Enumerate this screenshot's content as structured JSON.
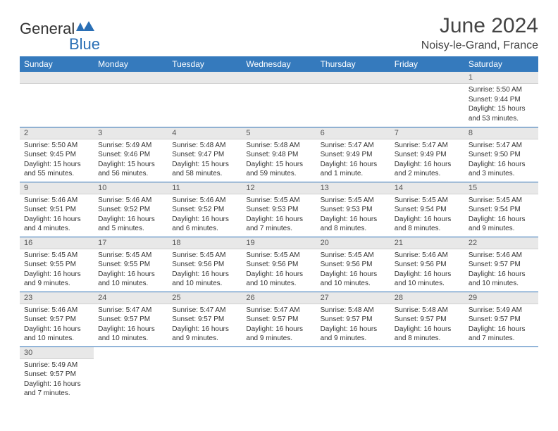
{
  "logo": {
    "general": "General",
    "blue": "Blue"
  },
  "title": "June 2024",
  "subtitle": "Noisy-le-Grand, France",
  "colors": {
    "header_bg": "#357abd",
    "header_text": "#ffffff",
    "daynum_bg": "#e8e8e8",
    "border": "#2a6fb5",
    "logo_blue": "#2a6fb5"
  },
  "day_headers": [
    "Sunday",
    "Monday",
    "Tuesday",
    "Wednesday",
    "Thursday",
    "Friday",
    "Saturday"
  ],
  "weeks": [
    [
      {
        "n": "",
        "sr": "",
        "ss": "",
        "dl": ""
      },
      {
        "n": "",
        "sr": "",
        "ss": "",
        "dl": ""
      },
      {
        "n": "",
        "sr": "",
        "ss": "",
        "dl": ""
      },
      {
        "n": "",
        "sr": "",
        "ss": "",
        "dl": ""
      },
      {
        "n": "",
        "sr": "",
        "ss": "",
        "dl": ""
      },
      {
        "n": "",
        "sr": "",
        "ss": "",
        "dl": ""
      },
      {
        "n": "1",
        "sr": "Sunrise: 5:50 AM",
        "ss": "Sunset: 9:44 PM",
        "dl": "Daylight: 15 hours and 53 minutes."
      }
    ],
    [
      {
        "n": "2",
        "sr": "Sunrise: 5:50 AM",
        "ss": "Sunset: 9:45 PM",
        "dl": "Daylight: 15 hours and 55 minutes."
      },
      {
        "n": "3",
        "sr": "Sunrise: 5:49 AM",
        "ss": "Sunset: 9:46 PM",
        "dl": "Daylight: 15 hours and 56 minutes."
      },
      {
        "n": "4",
        "sr": "Sunrise: 5:48 AM",
        "ss": "Sunset: 9:47 PM",
        "dl": "Daylight: 15 hours and 58 minutes."
      },
      {
        "n": "5",
        "sr": "Sunrise: 5:48 AM",
        "ss": "Sunset: 9:48 PM",
        "dl": "Daylight: 15 hours and 59 minutes."
      },
      {
        "n": "6",
        "sr": "Sunrise: 5:47 AM",
        "ss": "Sunset: 9:49 PM",
        "dl": "Daylight: 16 hours and 1 minute."
      },
      {
        "n": "7",
        "sr": "Sunrise: 5:47 AM",
        "ss": "Sunset: 9:49 PM",
        "dl": "Daylight: 16 hours and 2 minutes."
      },
      {
        "n": "8",
        "sr": "Sunrise: 5:47 AM",
        "ss": "Sunset: 9:50 PM",
        "dl": "Daylight: 16 hours and 3 minutes."
      }
    ],
    [
      {
        "n": "9",
        "sr": "Sunrise: 5:46 AM",
        "ss": "Sunset: 9:51 PM",
        "dl": "Daylight: 16 hours and 4 minutes."
      },
      {
        "n": "10",
        "sr": "Sunrise: 5:46 AM",
        "ss": "Sunset: 9:52 PM",
        "dl": "Daylight: 16 hours and 5 minutes."
      },
      {
        "n": "11",
        "sr": "Sunrise: 5:46 AM",
        "ss": "Sunset: 9:52 PM",
        "dl": "Daylight: 16 hours and 6 minutes."
      },
      {
        "n": "12",
        "sr": "Sunrise: 5:45 AM",
        "ss": "Sunset: 9:53 PM",
        "dl": "Daylight: 16 hours and 7 minutes."
      },
      {
        "n": "13",
        "sr": "Sunrise: 5:45 AM",
        "ss": "Sunset: 9:53 PM",
        "dl": "Daylight: 16 hours and 8 minutes."
      },
      {
        "n": "14",
        "sr": "Sunrise: 5:45 AM",
        "ss": "Sunset: 9:54 PM",
        "dl": "Daylight: 16 hours and 8 minutes."
      },
      {
        "n": "15",
        "sr": "Sunrise: 5:45 AM",
        "ss": "Sunset: 9:54 PM",
        "dl": "Daylight: 16 hours and 9 minutes."
      }
    ],
    [
      {
        "n": "16",
        "sr": "Sunrise: 5:45 AM",
        "ss": "Sunset: 9:55 PM",
        "dl": "Daylight: 16 hours and 9 minutes."
      },
      {
        "n": "17",
        "sr": "Sunrise: 5:45 AM",
        "ss": "Sunset: 9:55 PM",
        "dl": "Daylight: 16 hours and 10 minutes."
      },
      {
        "n": "18",
        "sr": "Sunrise: 5:45 AM",
        "ss": "Sunset: 9:56 PM",
        "dl": "Daylight: 16 hours and 10 minutes."
      },
      {
        "n": "19",
        "sr": "Sunrise: 5:45 AM",
        "ss": "Sunset: 9:56 PM",
        "dl": "Daylight: 16 hours and 10 minutes."
      },
      {
        "n": "20",
        "sr": "Sunrise: 5:45 AM",
        "ss": "Sunset: 9:56 PM",
        "dl": "Daylight: 16 hours and 10 minutes."
      },
      {
        "n": "21",
        "sr": "Sunrise: 5:46 AM",
        "ss": "Sunset: 9:56 PM",
        "dl": "Daylight: 16 hours and 10 minutes."
      },
      {
        "n": "22",
        "sr": "Sunrise: 5:46 AM",
        "ss": "Sunset: 9:57 PM",
        "dl": "Daylight: 16 hours and 10 minutes."
      }
    ],
    [
      {
        "n": "23",
        "sr": "Sunrise: 5:46 AM",
        "ss": "Sunset: 9:57 PM",
        "dl": "Daylight: 16 hours and 10 minutes."
      },
      {
        "n": "24",
        "sr": "Sunrise: 5:47 AM",
        "ss": "Sunset: 9:57 PM",
        "dl": "Daylight: 16 hours and 10 minutes."
      },
      {
        "n": "25",
        "sr": "Sunrise: 5:47 AM",
        "ss": "Sunset: 9:57 PM",
        "dl": "Daylight: 16 hours and 9 minutes."
      },
      {
        "n": "26",
        "sr": "Sunrise: 5:47 AM",
        "ss": "Sunset: 9:57 PM",
        "dl": "Daylight: 16 hours and 9 minutes."
      },
      {
        "n": "27",
        "sr": "Sunrise: 5:48 AM",
        "ss": "Sunset: 9:57 PM",
        "dl": "Daylight: 16 hours and 9 minutes."
      },
      {
        "n": "28",
        "sr": "Sunrise: 5:48 AM",
        "ss": "Sunset: 9:57 PM",
        "dl": "Daylight: 16 hours and 8 minutes."
      },
      {
        "n": "29",
        "sr": "Sunrise: 5:49 AM",
        "ss": "Sunset: 9:57 PM",
        "dl": "Daylight: 16 hours and 7 minutes."
      }
    ],
    [
      {
        "n": "30",
        "sr": "Sunrise: 5:49 AM",
        "ss": "Sunset: 9:57 PM",
        "dl": "Daylight: 16 hours and 7 minutes."
      },
      {
        "n": "",
        "sr": "",
        "ss": "",
        "dl": ""
      },
      {
        "n": "",
        "sr": "",
        "ss": "",
        "dl": ""
      },
      {
        "n": "",
        "sr": "",
        "ss": "",
        "dl": ""
      },
      {
        "n": "",
        "sr": "",
        "ss": "",
        "dl": ""
      },
      {
        "n": "",
        "sr": "",
        "ss": "",
        "dl": ""
      },
      {
        "n": "",
        "sr": "",
        "ss": "",
        "dl": ""
      }
    ]
  ]
}
